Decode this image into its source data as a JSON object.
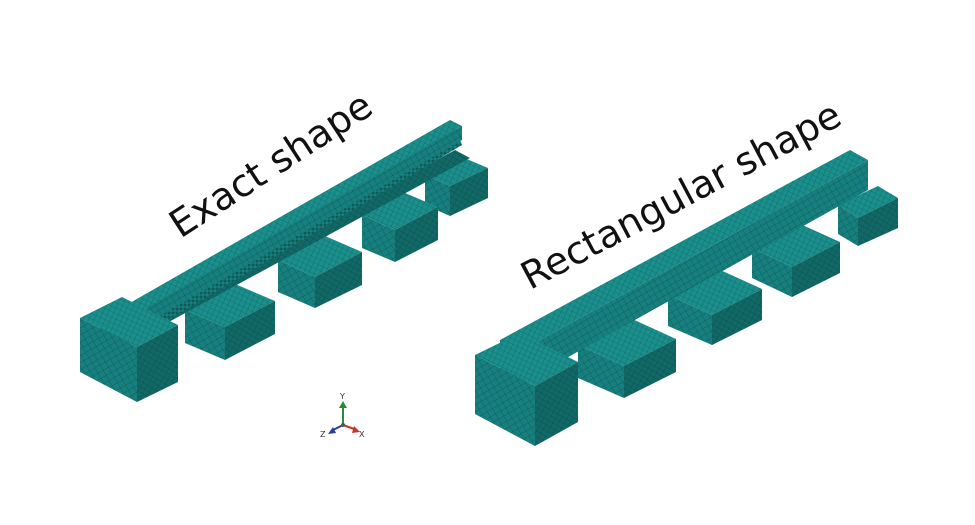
{
  "labels": {
    "exact": "Exact shape",
    "rectangular": "Rectangular shape"
  },
  "triad": {
    "y": "Y",
    "z": "Z",
    "x": "X"
  },
  "colors": {
    "mesh_face_light": "#1e8c8a",
    "mesh_face_mid": "#157574",
    "mesh_face_dark": "#0e5e5d",
    "mesh_line": "#0a4746",
    "axis_y": "#2a8a3c",
    "axis_x": "#c0392b",
    "axis_z": "#2c3e9a"
  }
}
